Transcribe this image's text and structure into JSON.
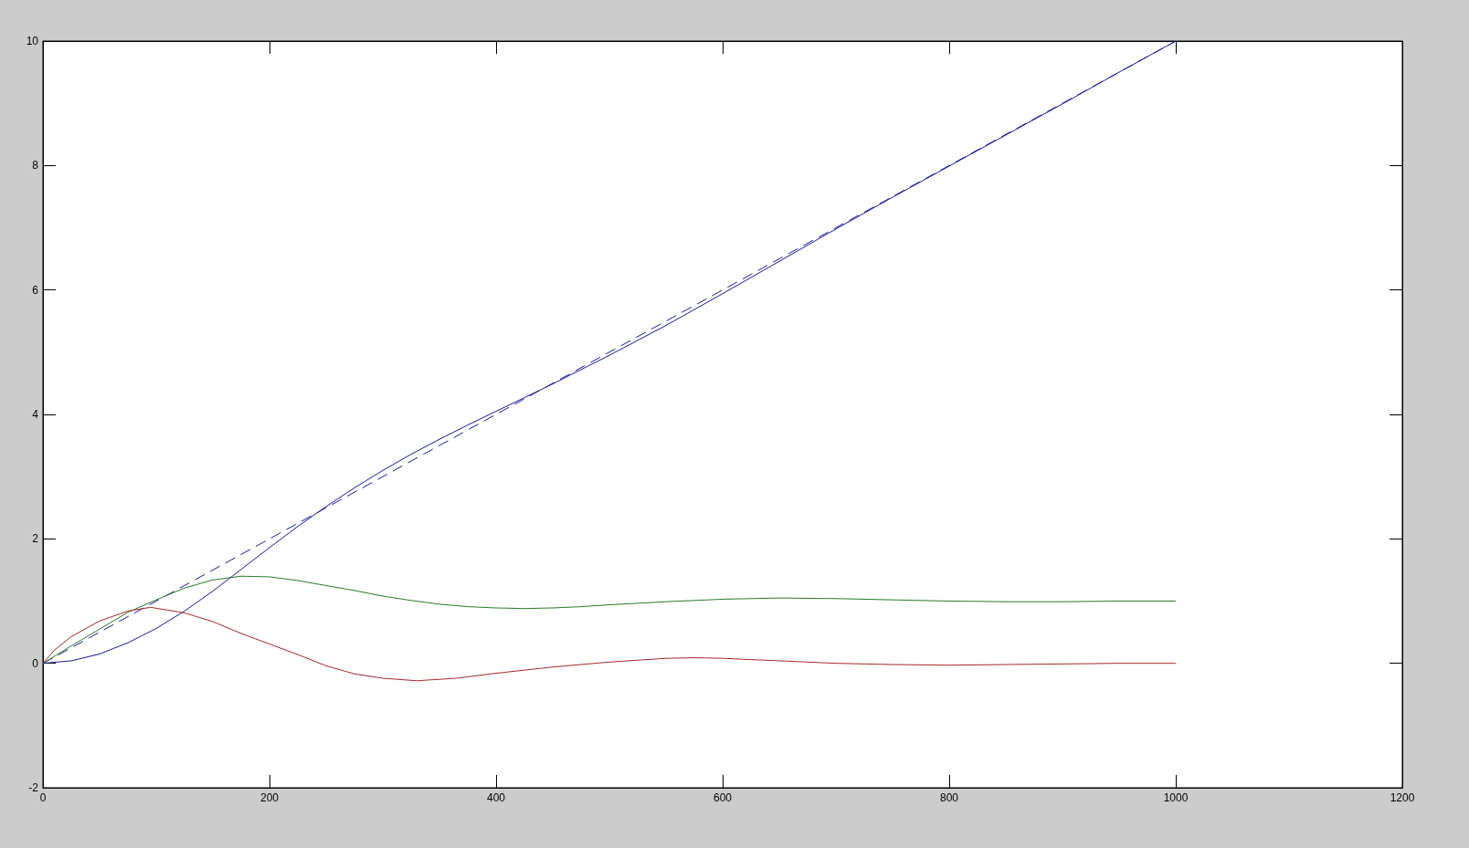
{
  "chart_data": {
    "type": "line",
    "xlim": [
      0,
      1200
    ],
    "xticks": [
      0,
      200,
      400,
      600,
      800,
      1000,
      1200
    ],
    "ylim": [
      -2,
      10
    ],
    "yticks": [
      -2,
      0,
      2,
      4,
      6,
      8,
      10
    ],
    "grid": false,
    "marker": "none",
    "line_style": "solid",
    "series": [
      {
        "color": "#1a1a99",
        "line_style": "dashed",
        "x": [
          0,
          1000
        ],
        "values": [
          0,
          10
        ]
      },
      {
        "color": "#1a1a99",
        "x": [
          0,
          25,
          50,
          75,
          100,
          125,
          150,
          175,
          200,
          225,
          250,
          275,
          300,
          325,
          350,
          375,
          400,
          425,
          450,
          475,
          500,
          550,
          600,
          650,
          700,
          750,
          800,
          850,
          900,
          950,
          1000
        ],
        "values": [
          0,
          0.04,
          0.15,
          0.33,
          0.56,
          0.84,
          1.16,
          1.51,
          1.86,
          2.2,
          2.52,
          2.82,
          3.1,
          3.36,
          3.6,
          3.83,
          4.05,
          4.27,
          4.49,
          4.72,
          4.95,
          5.43,
          5.94,
          6.46,
          6.98,
          7.49,
          7.99,
          8.49,
          8.99,
          9.5,
          10
        ]
      },
      {
        "color": "#2a7a2a",
        "x": [
          0,
          25,
          50,
          75,
          100,
          125,
          150,
          175,
          200,
          225,
          250,
          275,
          300,
          325,
          350,
          375,
          400,
          425,
          450,
          475,
          500,
          550,
          600,
          650,
          700,
          750,
          800,
          850,
          900,
          950,
          1000
        ],
        "values": [
          0,
          0.28,
          0.55,
          0.82,
          1.02,
          1.21,
          1.34,
          1.4,
          1.39,
          1.33,
          1.25,
          1.17,
          1.08,
          1.01,
          0.95,
          0.91,
          0.89,
          0.88,
          0.89,
          0.91,
          0.94,
          0.99,
          1.03,
          1.05,
          1.04,
          1.02,
          1.0,
          0.99,
          0.99,
          1.0,
          1.0
        ]
      },
      {
        "color": "#a52a2a",
        "x": [
          0,
          10,
          25,
          50,
          75,
          95,
          125,
          150,
          175,
          200,
          225,
          250,
          275,
          300,
          330,
          365,
          400,
          450,
          500,
          550,
          575,
          600,
          650,
          700,
          750,
          800,
          850,
          900,
          950,
          1000
        ],
        "values": [
          0,
          0.21,
          0.43,
          0.68,
          0.84,
          0.9,
          0.81,
          0.67,
          0.48,
          0.31,
          0.14,
          -0.04,
          -0.17,
          -0.24,
          -0.28,
          -0.24,
          -0.16,
          -0.06,
          0.02,
          0.08,
          0.09,
          0.08,
          0.04,
          0,
          -0.02,
          -0.03,
          -0.02,
          -0.01,
          0,
          0
        ]
      }
    ]
  }
}
